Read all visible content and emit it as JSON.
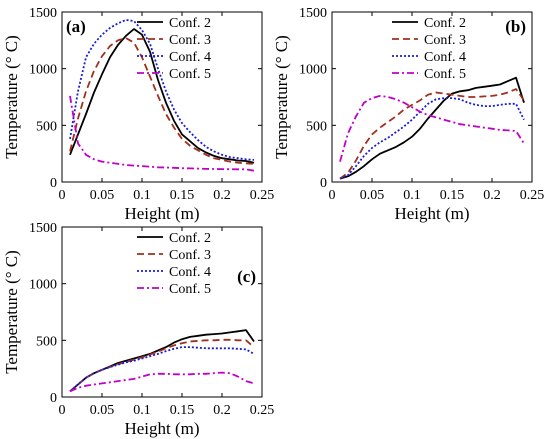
{
  "chart_data": [
    {
      "type": "line",
      "panel_label": "(a)",
      "xlabel": "Height (m)",
      "ylabel": "Temperature (° C)",
      "xlim": [
        0,
        0.25
      ],
      "ylim": [
        0,
        1500
      ],
      "xticks": [
        "0",
        "0.05",
        "0.1",
        "0.15",
        "0.2",
        "0.25"
      ],
      "yticks": [
        "0",
        "500",
        "1000",
        "1500"
      ],
      "grid": false,
      "legend_position": "top-right",
      "series": [
        {
          "name": "Conf. 2",
          "color": "#000000",
          "style": "solid",
          "x": [
            0.01,
            0.02,
            0.03,
            0.04,
            0.05,
            0.06,
            0.07,
            0.08,
            0.09,
            0.1,
            0.11,
            0.12,
            0.13,
            0.14,
            0.15,
            0.16,
            0.17,
            0.18,
            0.19,
            0.2,
            0.21,
            0.22,
            0.23,
            0.24
          ],
          "y": [
            240,
            420,
            600,
            790,
            950,
            1100,
            1210,
            1290,
            1350,
            1300,
            1150,
            900,
            700,
            540,
            420,
            360,
            300,
            260,
            230,
            210,
            200,
            190,
            185,
            170
          ]
        },
        {
          "name": "Conf. 3",
          "color": "#a0301e",
          "style": "dashed",
          "x": [
            0.01,
            0.02,
            0.03,
            0.04,
            0.05,
            0.06,
            0.07,
            0.08,
            0.09,
            0.1,
            0.11,
            0.12,
            0.13,
            0.14,
            0.15,
            0.16,
            0.17,
            0.18,
            0.19,
            0.2,
            0.21,
            0.22,
            0.23,
            0.24
          ],
          "y": [
            270,
            560,
            800,
            980,
            1110,
            1200,
            1250,
            1270,
            1230,
            1100,
            930,
            760,
            600,
            480,
            380,
            320,
            280,
            240,
            210,
            195,
            180,
            170,
            165,
            160
          ]
        },
        {
          "name": "Conf. 4",
          "color": "#1a1adb",
          "style": "dotted",
          "x": [
            0.01,
            0.02,
            0.03,
            0.04,
            0.05,
            0.06,
            0.07,
            0.08,
            0.09,
            0.1,
            0.11,
            0.12,
            0.13,
            0.14,
            0.15,
            0.16,
            0.17,
            0.18,
            0.19,
            0.2,
            0.21,
            0.22,
            0.23,
            0.24
          ],
          "y": [
            380,
            800,
            1100,
            1220,
            1300,
            1360,
            1400,
            1430,
            1420,
            1340,
            1220,
            1000,
            800,
            640,
            520,
            440,
            370,
            310,
            270,
            240,
            220,
            210,
            200,
            195
          ]
        },
        {
          "name": "Conf. 5",
          "color": "#c000c8",
          "style": "dashdot",
          "x": [
            0.01,
            0.02,
            0.03,
            0.04,
            0.05,
            0.06,
            0.07,
            0.08,
            0.09,
            0.1,
            0.11,
            0.12,
            0.13,
            0.14,
            0.15,
            0.16,
            0.17,
            0.18,
            0.19,
            0.2,
            0.21,
            0.22,
            0.23,
            0.24
          ],
          "y": [
            760,
            340,
            240,
            200,
            180,
            170,
            160,
            150,
            145,
            140,
            135,
            130,
            128,
            125,
            122,
            120,
            118,
            116,
            115,
            114,
            113,
            112,
            112,
            100
          ]
        }
      ]
    },
    {
      "type": "line",
      "panel_label": "(b)",
      "xlabel": "Height (m)",
      "ylabel": "Temperature (° C)",
      "xlim": [
        0,
        0.25
      ],
      "ylim": [
        0,
        1500
      ],
      "xticks": [
        "0",
        "0.05",
        "0.1",
        "0.15",
        "0.2",
        "0.25"
      ],
      "yticks": [
        "0",
        "500",
        "1000",
        "1500"
      ],
      "grid": false,
      "legend_position": "top-right",
      "series": [
        {
          "name": "Conf. 2",
          "color": "#000000",
          "style": "solid",
          "x": [
            0.01,
            0.02,
            0.03,
            0.04,
            0.05,
            0.06,
            0.07,
            0.08,
            0.09,
            0.1,
            0.11,
            0.12,
            0.13,
            0.14,
            0.15,
            0.16,
            0.17,
            0.18,
            0.19,
            0.2,
            0.21,
            0.22,
            0.23,
            0.24
          ],
          "y": [
            30,
            50,
            90,
            140,
            200,
            250,
            280,
            310,
            350,
            400,
            470,
            560,
            640,
            720,
            780,
            800,
            810,
            830,
            840,
            850,
            860,
            890,
            920,
            700
          ]
        },
        {
          "name": "Conf. 3",
          "color": "#a0301e",
          "style": "dashed",
          "x": [
            0.01,
            0.02,
            0.03,
            0.04,
            0.05,
            0.06,
            0.07,
            0.08,
            0.09,
            0.1,
            0.11,
            0.12,
            0.13,
            0.14,
            0.15,
            0.16,
            0.17,
            0.18,
            0.19,
            0.2,
            0.21,
            0.22,
            0.23,
            0.24
          ],
          "y": [
            30,
            80,
            190,
            320,
            420,
            480,
            530,
            580,
            640,
            680,
            720,
            770,
            790,
            780,
            770,
            760,
            750,
            750,
            755,
            760,
            770,
            790,
            820,
            720
          ]
        },
        {
          "name": "Conf. 4",
          "color": "#1a1adb",
          "style": "dotted",
          "x": [
            0.01,
            0.02,
            0.03,
            0.04,
            0.05,
            0.06,
            0.07,
            0.08,
            0.09,
            0.1,
            0.11,
            0.12,
            0.13,
            0.14,
            0.15,
            0.16,
            0.17,
            0.18,
            0.19,
            0.2,
            0.21,
            0.22,
            0.23,
            0.24
          ],
          "y": [
            30,
            60,
            140,
            230,
            300,
            350,
            390,
            440,
            490,
            550,
            620,
            690,
            730,
            740,
            740,
            730,
            700,
            680,
            670,
            670,
            680,
            690,
            690,
            550
          ]
        },
        {
          "name": "Conf. 5",
          "color": "#c000c8",
          "style": "dashdot",
          "x": [
            0.01,
            0.02,
            0.03,
            0.04,
            0.05,
            0.06,
            0.07,
            0.08,
            0.09,
            0.1,
            0.11,
            0.12,
            0.13,
            0.14,
            0.15,
            0.16,
            0.17,
            0.18,
            0.19,
            0.2,
            0.21,
            0.22,
            0.23,
            0.24
          ],
          "y": [
            180,
            430,
            580,
            700,
            740,
            760,
            750,
            730,
            700,
            660,
            620,
            590,
            570,
            550,
            530,
            510,
            500,
            490,
            480,
            470,
            460,
            455,
            450,
            340
          ]
        }
      ]
    },
    {
      "type": "line",
      "panel_label": "(c)",
      "xlabel": "Height (m)",
      "ylabel": "Temperature (° C)",
      "xlim": [
        0,
        0.25
      ],
      "ylim": [
        0,
        1500
      ],
      "xticks": [
        "0",
        "0.05",
        "0.1",
        "0.15",
        "0.2",
        "0.25"
      ],
      "yticks": [
        "0",
        "500",
        "1000",
        "1500"
      ],
      "grid": false,
      "legend_position": "top-right",
      "series": [
        {
          "name": "Conf. 2",
          "color": "#000000",
          "style": "solid",
          "x": [
            0.01,
            0.02,
            0.03,
            0.04,
            0.05,
            0.06,
            0.07,
            0.08,
            0.09,
            0.1,
            0.11,
            0.12,
            0.13,
            0.14,
            0.15,
            0.16,
            0.17,
            0.18,
            0.19,
            0.2,
            0.21,
            0.22,
            0.23,
            0.24
          ],
          "y": [
            50,
            110,
            170,
            210,
            240,
            270,
            300,
            320,
            340,
            360,
            380,
            410,
            440,
            480,
            510,
            530,
            540,
            550,
            555,
            560,
            570,
            580,
            590,
            490
          ]
        },
        {
          "name": "Conf. 3",
          "color": "#a0301e",
          "style": "dashed",
          "x": [
            0.01,
            0.02,
            0.03,
            0.04,
            0.05,
            0.06,
            0.07,
            0.08,
            0.09,
            0.1,
            0.11,
            0.12,
            0.13,
            0.14,
            0.15,
            0.16,
            0.17,
            0.18,
            0.19,
            0.2,
            0.21,
            0.22,
            0.23,
            0.24
          ],
          "y": [
            50,
            110,
            170,
            210,
            240,
            265,
            290,
            310,
            330,
            350,
            375,
            400,
            430,
            455,
            475,
            490,
            495,
            500,
            500,
            505,
            505,
            500,
            500,
            440
          ]
        },
        {
          "name": "Conf. 4",
          "color": "#1a1adb",
          "style": "dotted",
          "x": [
            0.01,
            0.02,
            0.03,
            0.04,
            0.05,
            0.06,
            0.07,
            0.08,
            0.09,
            0.1,
            0.11,
            0.12,
            0.13,
            0.14,
            0.15,
            0.16,
            0.17,
            0.18,
            0.19,
            0.2,
            0.21,
            0.22,
            0.23,
            0.24
          ],
          "y": [
            50,
            110,
            170,
            210,
            240,
            265,
            285,
            305,
            320,
            340,
            360,
            380,
            405,
            425,
            440,
            440,
            435,
            430,
            430,
            430,
            430,
            425,
            420,
            380
          ]
        },
        {
          "name": "Conf. 5",
          "color": "#c000c8",
          "style": "dashdot",
          "x": [
            0.01,
            0.02,
            0.03,
            0.04,
            0.05,
            0.06,
            0.07,
            0.08,
            0.09,
            0.1,
            0.11,
            0.12,
            0.13,
            0.14,
            0.15,
            0.16,
            0.17,
            0.18,
            0.19,
            0.2,
            0.21,
            0.22,
            0.23,
            0.24
          ],
          "y": [
            50,
            80,
            100,
            110,
            120,
            130,
            140,
            150,
            160,
            180,
            200,
            205,
            205,
            200,
            200,
            200,
            205,
            205,
            210,
            215,
            210,
            180,
            140,
            120
          ]
        }
      ]
    }
  ]
}
